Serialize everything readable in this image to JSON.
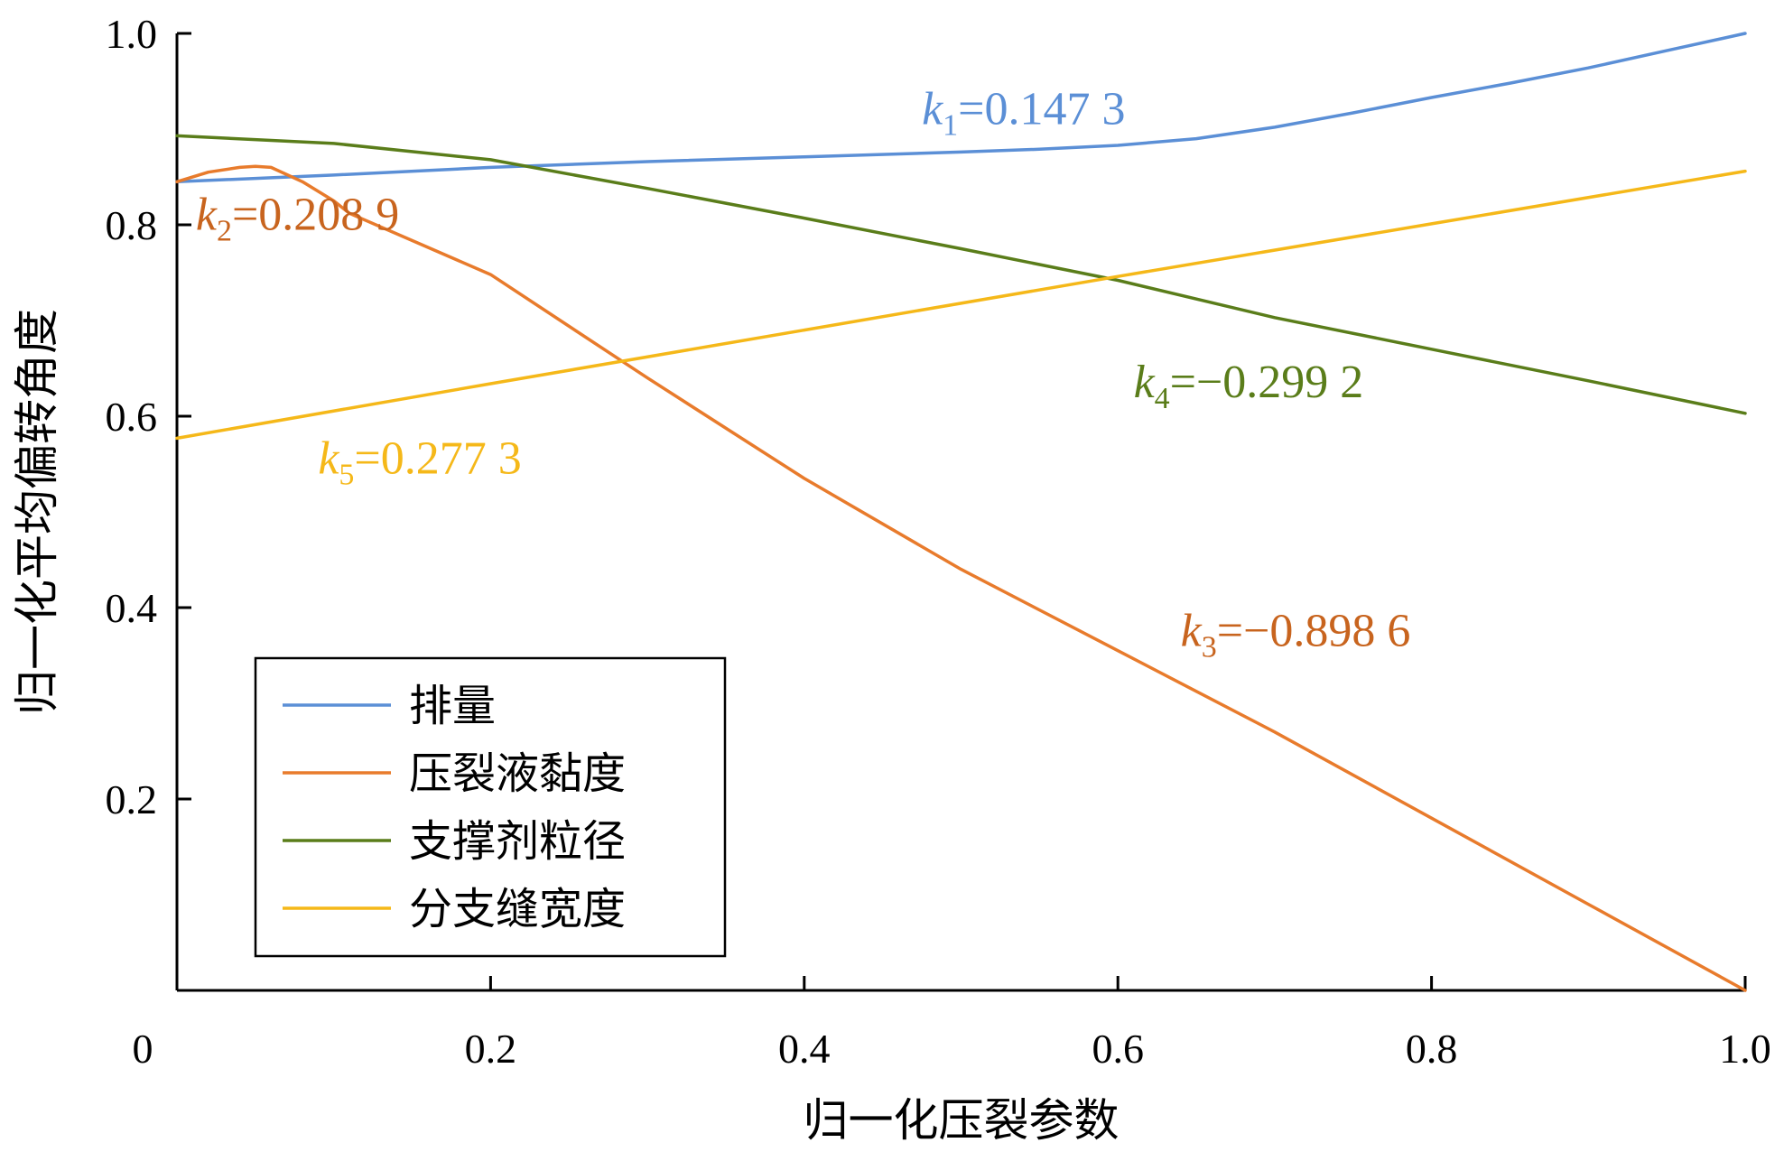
{
  "chart_data": {
    "type": "line",
    "title": "",
    "xlabel": "归一化压裂参数",
    "ylabel": "归一化平均偏转角度",
    "xlim": [
      0,
      1.0
    ],
    "ylim": [
      0,
      1.0
    ],
    "x_ticks": [
      "0",
      "0.2",
      "0.4",
      "0.6",
      "0.8",
      "1.0"
    ],
    "y_ticks": [
      "0.2",
      "0.4",
      "0.6",
      "0.8",
      "1.0"
    ],
    "legend_position": "bottom-left",
    "grid": false,
    "series": [
      {
        "name": "排量",
        "color": "#5b8fd6",
        "x": [
          0.0,
          0.1,
          0.2,
          0.3,
          0.4,
          0.5,
          0.55,
          0.6,
          0.65,
          0.7,
          0.75,
          0.8,
          0.85,
          0.9,
          0.95,
          1.0
        ],
        "y": [
          0.845,
          0.852,
          0.86,
          0.866,
          0.871,
          0.876,
          0.879,
          0.883,
          0.89,
          0.902,
          0.917,
          0.933,
          0.948,
          0.964,
          0.982,
          1.0
        ]
      },
      {
        "name": "压裂液黏度",
        "color": "#e87b2c",
        "x": [
          0.0,
          0.02,
          0.04,
          0.05,
          0.06,
          0.08,
          0.1,
          0.11,
          0.2,
          0.3,
          0.4,
          0.5,
          0.6,
          0.7,
          0.8,
          0.9,
          1.0
        ],
        "y": [
          0.845,
          0.855,
          0.86,
          0.861,
          0.86,
          0.845,
          0.825,
          0.812,
          0.748,
          0.64,
          0.535,
          0.44,
          0.355,
          0.27,
          0.18,
          0.09,
          0.0
        ]
      },
      {
        "name": "支撑剂粒径",
        "color": "#5a7d1a",
        "x": [
          0.0,
          0.1,
          0.2,
          0.3,
          0.4,
          0.5,
          0.6,
          0.7,
          0.8,
          0.9,
          1.0
        ],
        "y": [
          0.893,
          0.885,
          0.868,
          0.838,
          0.807,
          0.775,
          0.742,
          0.703,
          0.67,
          0.637,
          0.603
        ]
      },
      {
        "name": "分支缝宽度",
        "color": "#f5b819",
        "x": [
          0.0,
          0.2,
          0.4,
          0.6,
          0.8,
          1.0
        ],
        "y": [
          0.577,
          0.634,
          0.69,
          0.746,
          0.801,
          0.856
        ]
      }
    ],
    "annotations": [
      {
        "k": "k",
        "sub": "1",
        "text": "=0.147 3",
        "color": "#5b8fd6",
        "x": 0.475,
        "y": 0.905
      },
      {
        "k": "k",
        "sub": "2",
        "text": "=0.208 9",
        "color": "#c8641e",
        "x": 0.012,
        "y": 0.795
      },
      {
        "k": "k",
        "sub": "3",
        "text": "=−0.898 6",
        "color": "#c8641e",
        "x": 0.64,
        "y": 0.36
      },
      {
        "k": "k",
        "sub": "4",
        "text": "=−0.299 2",
        "color": "#5a7d1a",
        "x": 0.61,
        "y": 0.62
      },
      {
        "k": "k",
        "sub": "5",
        "text": "=0.277 3",
        "color": "#f5b819",
        "x": 0.09,
        "y": 0.54
      }
    ]
  }
}
